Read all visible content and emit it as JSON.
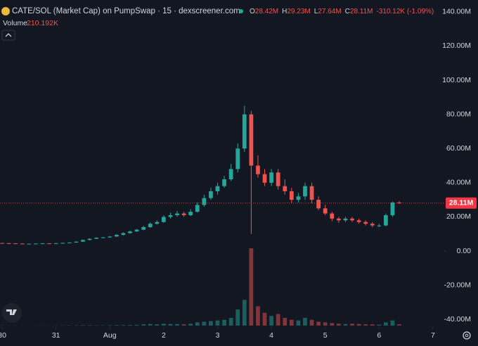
{
  "chart_data": {
    "type": "candlestick",
    "title": "CATE/SOL (Market Cap) on PumpSwap · 15 · dexscreener.com",
    "ohlc_header": [
      {
        "key": "O",
        "value": "28.42M"
      },
      {
        "key": "H",
        "value": "29.23M"
      },
      {
        "key": "L",
        "value": "27.64M"
      },
      {
        "key": "C",
        "value": "28.11M"
      }
    ],
    "change_text": "-310.12K (-1.09%)",
    "volume_title": "Volume",
    "volume_text": "210.192K",
    "up_color": "#26a69a",
    "down_color": "#ef5350",
    "x": [
      0,
      0.125,
      0.25,
      0.375,
      0.5,
      0.625,
      0.75,
      0.875,
      1,
      1.125,
      1.25,
      1.375,
      1.5,
      1.625,
      1.75,
      1.875,
      2,
      2.125,
      2.25,
      2.375,
      2.5,
      2.625,
      2.75,
      2.875,
      3,
      3.125,
      3.25,
      3.375,
      3.5,
      3.625,
      3.75,
      3.875,
      4,
      4.125,
      4.25,
      4.375,
      4.5,
      4.625,
      4.75,
      4.875,
      5,
      5.125,
      5.25,
      5.375,
      5.5,
      5.625,
      5.75,
      5.875,
      6,
      6.125,
      6.25,
      6.375,
      6.5,
      6.625,
      6.75,
      6.875,
      7,
      7.125,
      7.25,
      7.375
    ],
    "open": [
      4.7,
      4.6,
      4.5,
      4.4,
      4.3,
      4.3,
      4.4,
      4.5,
      4.4,
      4.6,
      4.8,
      5.0,
      5.5,
      6.5,
      7.2,
      7.8,
      8.0,
      8.5,
      9.5,
      10.5,
      11.5,
      12.5,
      14,
      16,
      17,
      20,
      21,
      22,
      21,
      23,
      27,
      31,
      35,
      38,
      42,
      48,
      60,
      80,
      50,
      45,
      40,
      46,
      38,
      35,
      30,
      32,
      38,
      30,
      25,
      22,
      19,
      18,
      19,
      18,
      17,
      16,
      15,
      15,
      21,
      28.42
    ],
    "high": [
      4.8,
      4.7,
      4.6,
      4.5,
      4.4,
      4.5,
      4.6,
      4.6,
      4.7,
      4.9,
      5.1,
      5.7,
      6.8,
      7.5,
      8.1,
      8.3,
      8.8,
      9.9,
      11,
      12,
      13,
      14.8,
      16.8,
      18,
      21,
      22.5,
      23.5,
      23,
      24.5,
      28.5,
      33,
      37,
      40,
      44,
      51,
      63,
      85,
      82,
      56,
      48,
      48,
      48,
      42,
      37,
      34,
      40,
      40,
      32,
      27,
      23,
      20,
      20,
      20,
      19,
      18,
      17,
      16,
      22,
      29,
      29.23
    ],
    "low": [
      4.5,
      4.4,
      4.3,
      4.2,
      4.2,
      4.2,
      4.3,
      4.3,
      4.3,
      4.5,
      4.7,
      4.9,
      5.4,
      6.3,
      7.0,
      7.6,
      7.8,
      8.3,
      9.2,
      10.2,
      11.2,
      12.2,
      13.6,
      15.5,
      16.5,
      19,
      20,
      20,
      20.5,
      22.5,
      26,
      30,
      33,
      37,
      41,
      46,
      58,
      10,
      43,
      38,
      38,
      36,
      33,
      28,
      28.5,
      30,
      28,
      24,
      21,
      17.5,
      16.5,
      17,
      17,
      16,
      15,
      14,
      14,
      14.5,
      20,
      27.64
    ],
    "close": [
      4.6,
      4.5,
      4.4,
      4.3,
      4.3,
      4.4,
      4.5,
      4.4,
      4.6,
      4.8,
      5.0,
      5.5,
      6.5,
      7.2,
      7.8,
      8.0,
      8.5,
      9.5,
      10.5,
      11.5,
      12.5,
      14,
      16,
      17,
      20,
      21,
      22,
      21,
      23,
      27,
      31,
      35,
      38,
      42,
      48,
      60,
      80,
      50,
      45,
      40,
      46,
      38,
      35,
      30,
      32,
      38,
      30,
      25,
      22,
      19,
      18,
      19,
      18,
      17,
      16,
      15,
      15,
      21,
      28.42,
      28.11
    ],
    "volume": [
      20,
      15,
      10,
      10,
      8,
      10,
      12,
      10,
      15,
      20,
      30,
      40,
      60,
      50,
      40,
      40,
      60,
      80,
      90,
      100,
      120,
      200,
      250,
      200,
      300,
      250,
      250,
      200,
      300,
      500,
      600,
      700,
      800,
      900,
      1200,
      2500,
      4000,
      12000,
      3000,
      2000,
      1500,
      1800,
      1200,
      900,
      800,
      1200,
      900,
      600,
      500,
      400,
      300,
      250,
      300,
      250,
      200,
      200,
      150,
      500,
      800,
      210.192
    ],
    "xlim": [
      -0.04,
      8.21
    ],
    "xticks": [
      {
        "value": 0,
        "label": "30"
      },
      {
        "value": 1,
        "label": "31"
      },
      {
        "value": 2,
        "label": "Aug"
      },
      {
        "value": 3,
        "label": "2"
      },
      {
        "value": 4,
        "label": "3"
      },
      {
        "value": 5,
        "label": "4"
      },
      {
        "value": 6,
        "label": "5"
      },
      {
        "value": 7,
        "label": "6"
      },
      {
        "value": 8,
        "label": "7"
      }
    ],
    "ylim": [
      -43.6,
      146.9
    ],
    "yticks": [
      {
        "value": 140,
        "label": "140.00M"
      },
      {
        "value": 120,
        "label": "120.00M"
      },
      {
        "value": 100,
        "label": "100.00M"
      },
      {
        "value": 80,
        "label": "80.00M"
      },
      {
        "value": 60,
        "label": "60.00M"
      },
      {
        "value": 40,
        "label": "40.00M"
      },
      {
        "value": 20,
        "label": "20.00M"
      },
      {
        "value": 0,
        "label": "0.00"
      },
      {
        "value": -20,
        "label": "-20.00M"
      },
      {
        "value": -40,
        "label": "-40.00M"
      }
    ],
    "last_price": {
      "value": 28.11,
      "label": "28.11M",
      "color": "#f23645"
    }
  }
}
